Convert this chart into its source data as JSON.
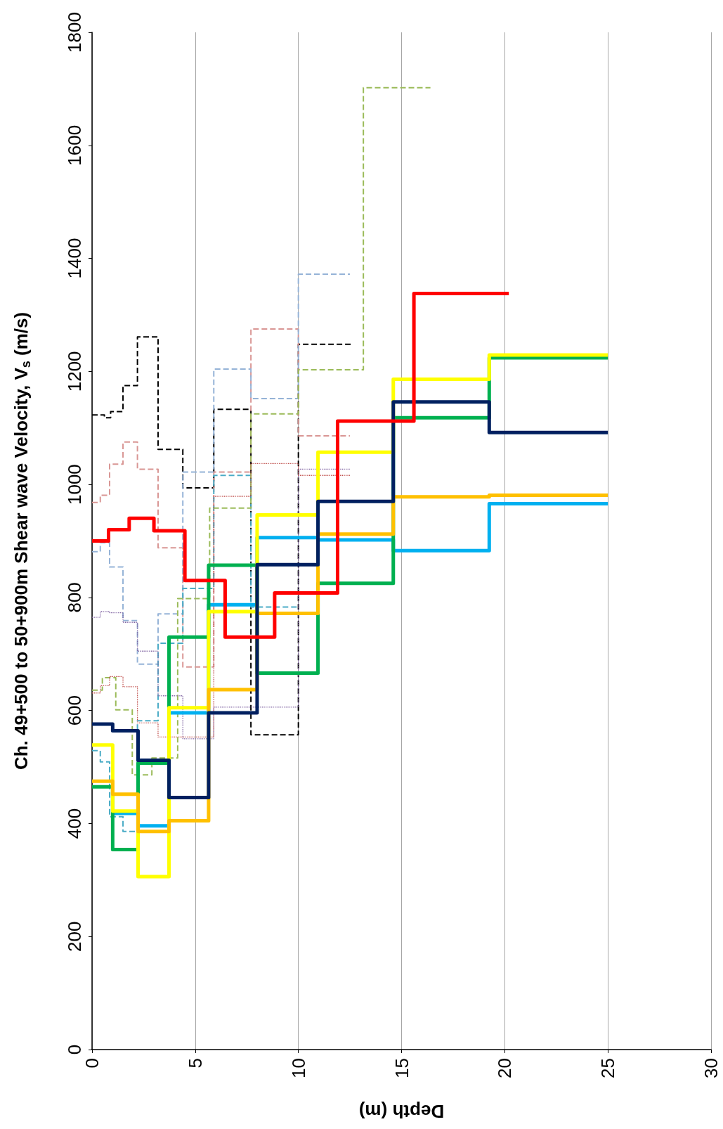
{
  "chart_data": {
    "type": "step",
    "xlabel": "Depth (m)",
    "ylabel": "Ch. 49+500 to 50+900m Shear wave Velocity, V$_{s}$ (m/s)",
    "xlim": [
      0,
      30
    ],
    "xticks": [
      0,
      5,
      10,
      15,
      20,
      25,
      30
    ],
    "ylim": [
      0,
      1800
    ],
    "yticks": [
      0,
      200,
      400,
      600,
      800,
      1000,
      1200,
      1400,
      1600,
      1800
    ],
    "grid": "x",
    "marker": "none",
    "series": [
      {
        "color": "#000000",
        "line_style": "dashed",
        "x": [
          0,
          0.6,
          0.9,
          1.5,
          2.2,
          3.2,
          4.4,
          5.9,
          7.7,
          10.0,
          12.55
        ],
        "values": [
          1123,
          1118,
          1129,
          1175,
          1261,
          1062,
          994,
          1133,
          557,
          1248,
          1248
        ]
      },
      {
        "color": "#d99694",
        "line_style": "dashed",
        "x": [
          0,
          0.4,
          0.85,
          1.5,
          2.2,
          3.2,
          4.4,
          5.9,
          7.7,
          10.0,
          12.5
        ],
        "values": [
          968,
          981,
          1036,
          1075,
          1027,
          888,
          677,
          1022,
          1275,
          1086,
          1086
        ]
      },
      {
        "color": "#95b3d7",
        "line_style": "dashed",
        "x": [
          0,
          0.4,
          0.85,
          1.5,
          2.2,
          3.2,
          4.4,
          5.9,
          7.7,
          10.0,
          12.5
        ],
        "values": [
          881,
          897,
          854,
          759,
          682,
          771,
          1022,
          1204,
          1152,
          1372,
          1372
        ]
      },
      {
        "color": "#4bacc6",
        "line_style": "dashed",
        "x": [
          0,
          0.4,
          0.85,
          1.5,
          2.2,
          3.2,
          4.4,
          5.9,
          7.7,
          10.0
        ],
        "values": [
          529,
          509,
          412,
          386,
          582,
          719,
          816,
          1016,
          783,
          783
        ]
      },
      {
        "color": "#9bbb59",
        "line_style": "dashed",
        "x": [
          0,
          0.5,
          1.15,
          1.95,
          2.9,
          4.15,
          5.7,
          7.7,
          10.0,
          13.15,
          16.4
        ],
        "values": [
          636,
          658,
          601,
          486,
          516,
          798,
          958,
          1125,
          1203,
          1702,
          1702
        ]
      },
      {
        "color": "#8064a2",
        "line_style": "dotted",
        "x": [
          0,
          0.4,
          0.85,
          1.5,
          2.2,
          3.2,
          4.4,
          5.9,
          10.0,
          12.5
        ],
        "values": [
          765,
          775,
          773,
          756,
          705,
          626,
          550,
          606,
          1027,
          1027
        ]
      },
      {
        "color": "#c0504d",
        "line_style": "dotted",
        "x": [
          0,
          0.4,
          0.85,
          1.5,
          2.2,
          3.2,
          5.9,
          7.7,
          10.0,
          12.5
        ],
        "values": [
          631,
          644,
          660,
          642,
          578,
          553,
          979,
          1037,
          1016,
          1016
        ]
      },
      {
        "color": "#00b0f0",
        "line_style": "solid",
        "x": [
          1.0,
          2.23,
          3.73,
          5.65,
          8.0,
          10.95,
          14.6,
          19.25,
          25
        ],
        "values": [
          418,
          396,
          596,
          787,
          906,
          902,
          883,
          966,
          966
        ]
      },
      {
        "color": "#00b050",
        "line_style": "solid",
        "x": [
          0,
          1.0,
          2.23,
          3.73,
          5.65,
          8.0,
          10.95,
          14.6,
          19.25,
          25
        ],
        "values": [
          465,
          354,
          507,
          730,
          857,
          666,
          825,
          1118,
          1224,
          1224
        ]
      },
      {
        "color": "#ffff00",
        "line_style": "solid",
        "x": [
          0,
          1.0,
          2.23,
          3.73,
          5.65,
          8.0,
          10.95,
          14.6,
          19.25,
          25
        ],
        "values": [
          539,
          422,
          306,
          605,
          775,
          946,
          1057,
          1186,
          1229,
          1229
        ]
      },
      {
        "color": "#ffc000",
        "line_style": "solid",
        "x": [
          0,
          1.0,
          2.23,
          3.73,
          5.65,
          8.0,
          10.95,
          14.6,
          19.25,
          25
        ],
        "values": [
          475,
          452,
          386,
          405,
          637,
          772,
          912,
          978,
          981,
          981
        ]
      },
      {
        "color": "#002060",
        "line_style": "solid",
        "x": [
          0,
          1.0,
          2.23,
          3.73,
          5.65,
          8.0,
          10.95,
          14.6,
          19.25,
          25
        ],
        "values": [
          576,
          564,
          512,
          446,
          596,
          858,
          970,
          1146,
          1092,
          1092
        ]
      },
      {
        "color": "#ff0000",
        "line_style": "solid",
        "x": [
          0,
          0.8,
          1.8,
          3.0,
          4.5,
          6.45,
          8.85,
          11.9,
          15.6,
          20.2
        ],
        "values": [
          900,
          920,
          940,
          918,
          830,
          730,
          808,
          1112,
          1338,
          1338
        ]
      }
    ]
  }
}
